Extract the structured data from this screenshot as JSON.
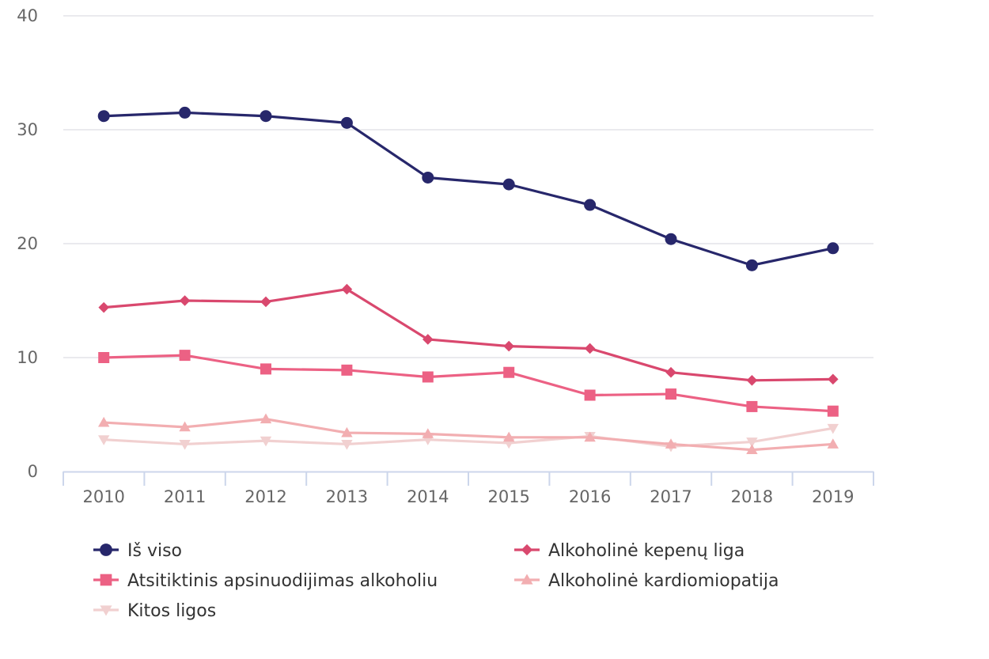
{
  "chart_data": {
    "type": "line",
    "title": "",
    "xlabel": "",
    "ylabel": "",
    "ylim": [
      0,
      40
    ],
    "yticks": [
      0,
      10,
      20,
      30,
      40
    ],
    "grid": true,
    "legend_position": "bottom",
    "categories": [
      "2010",
      "2011",
      "2012",
      "2013",
      "2014",
      "2015",
      "2016",
      "2017",
      "2018",
      "2019"
    ],
    "series": [
      {
        "name": "Iš viso",
        "color": "#27276b",
        "marker": "circle",
        "values": [
          31.2,
          31.5,
          31.2,
          30.6,
          25.8,
          25.2,
          23.4,
          20.4,
          18.1,
          19.6
        ]
      },
      {
        "name": "Alkoholinė kepenų liga",
        "color": "#d9486e",
        "marker": "diamond",
        "values": [
          14.4,
          15.0,
          14.9,
          16.0,
          11.6,
          11.0,
          10.8,
          8.7,
          8.0,
          8.1
        ]
      },
      {
        "name": "Atsitiktinis apsinuodijimas alkoholiu",
        "color": "#ec6184",
        "marker": "square",
        "values": [
          10.0,
          10.2,
          9.0,
          8.9,
          8.3,
          8.7,
          6.7,
          6.8,
          5.7,
          5.3
        ]
      },
      {
        "name": "Alkoholinė kardiomiopatija",
        "color": "#f2aeb1",
        "marker": "triangle",
        "values": [
          4.3,
          3.9,
          4.6,
          3.4,
          3.3,
          3.0,
          3.0,
          2.4,
          1.9,
          2.4
        ]
      },
      {
        "name": "Kitos ligos",
        "color": "#f1d0d0",
        "marker": "triangle-down",
        "values": [
          2.8,
          2.4,
          2.7,
          2.4,
          2.8,
          2.5,
          3.1,
          2.2,
          2.6,
          3.8
        ]
      }
    ]
  }
}
